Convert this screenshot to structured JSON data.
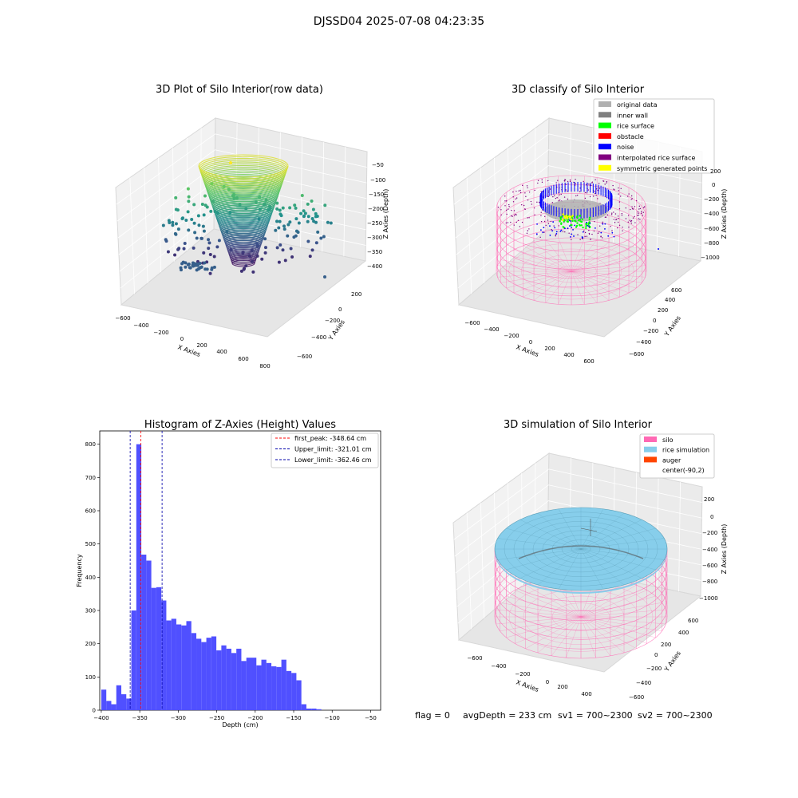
{
  "suptitle": "DJSSD04 2025-07-08 04:23:35",
  "status_line": {
    "flag": "flag = 0",
    "avg": "avgDepth = 233 cm",
    "sv1": "sv1 = 700~2300",
    "sv2": "sv2 = 700~2300"
  },
  "colors": {
    "hist_bar": "#5050ff",
    "first_peak": "#ff0000",
    "limits": "#0000aa",
    "silo": "#ff69b4",
    "rice_sim": "#87ceeb",
    "auger": "#ff4500"
  },
  "chart_data": [
    {
      "type": "scatter",
      "kind": "3d",
      "title": "3D Plot of Silo Interior(row data)",
      "xlabel": "X Axies",
      "ylabel": "Y Axies",
      "zlabel": "Z Axies (Depth)",
      "x_ticks": [
        "−600",
        "−400",
        "−200",
        "0",
        "200",
        "400",
        "600",
        "800"
      ],
      "y_ticks": [
        "−600",
        "−400",
        "−200",
        "0",
        "200"
      ],
      "z_ticks": [
        "−50",
        "−100",
        "−150",
        "−200",
        "−250",
        "−300",
        "−350",
        "−400"
      ]
    },
    {
      "type": "scatter",
      "kind": "3d",
      "title": "3D classify of Silo Interior",
      "xlabel": "X Axies",
      "ylabel": "Y Axies",
      "zlabel": "Z Axies (Depth)",
      "x_ticks": [
        "−600",
        "−400",
        "−200",
        "0",
        "200",
        "400",
        "600"
      ],
      "y_ticks": [
        "−600",
        "−400",
        "−200",
        "0",
        "200",
        "400",
        "600"
      ],
      "z_ticks": [
        "200",
        "0",
        "−200",
        "−400",
        "−600",
        "−800",
        "−1000"
      ],
      "legend_placement": "top-right",
      "legend": [
        {
          "label": "original data",
          "color": "#b0b0b0"
        },
        {
          "label": "inner wall",
          "color": "#808080"
        },
        {
          "label": "rice surface",
          "color": "#00ff00"
        },
        {
          "label": "obstacle",
          "color": "#ff0000"
        },
        {
          "label": "noise",
          "color": "#0000ff"
        },
        {
          "label": "interpolated rice surface",
          "color": "#800080"
        },
        {
          "label": "symmetric generated points",
          "color": "#ffff00"
        }
      ]
    },
    {
      "type": "bar",
      "title": "Histogram of Z-Axies (Height) Values",
      "xlabel": "Depth (cm)",
      "ylabel": "Frequency",
      "xlim": [
        -402,
        -37
      ],
      "ylim": [
        0,
        840
      ],
      "x_ticks": [
        -400,
        -350,
        -300,
        -250,
        -200,
        -150,
        -100,
        -50
      ],
      "y_ticks": [
        0,
        100,
        200,
        300,
        400,
        500,
        600,
        700,
        800
      ],
      "bin_start": -400,
      "bin_width": 6.5,
      "values": [
        62,
        28,
        18,
        75,
        48,
        35,
        300,
        800,
        468,
        450,
        368,
        370,
        330,
        270,
        275,
        258,
        255,
        268,
        232,
        215,
        205,
        218,
        222,
        180,
        195,
        185,
        172,
        185,
        148,
        158,
        158,
        135,
        152,
        142,
        132,
        130,
        152,
        118,
        112,
        90,
        18,
        5,
        5,
        3
      ],
      "vlines": [
        {
          "label": "first_peak: -348.64 cm",
          "value": -348.64,
          "color": "#ff0000"
        },
        {
          "label": "Upper_limit: -321.01 cm",
          "value": -321.01,
          "color": "#0000aa"
        },
        {
          "label": "Lower_limit: -362.46 cm",
          "value": -362.46,
          "color": "#0000aa"
        }
      ],
      "legend_placement": "top-right"
    },
    {
      "type": "area",
      "kind": "3d",
      "title": "3D simulation of Silo Interior",
      "xlabel": "X Axies",
      "ylabel": "Y Axies",
      "zlabel": "Z Axies (Depth)",
      "x_ticks": [
        "−600",
        "−400",
        "−200",
        "0",
        "200",
        "400"
      ],
      "y_ticks": [
        "−600",
        "−400",
        "−200",
        "0",
        "200",
        "400",
        "600"
      ],
      "z_ticks": [
        "200",
        "0",
        "−200",
        "−400",
        "−600",
        "−800",
        "−1000"
      ],
      "legend_placement": "top-right",
      "legend": [
        {
          "label": "silo",
          "color": "#ff69b4"
        },
        {
          "label": "rice simulation",
          "color": "#87ceeb"
        },
        {
          "label": "auger",
          "color": "#ff4500"
        },
        {
          "label": "center(-90,2)",
          "color": ""
        }
      ]
    }
  ]
}
